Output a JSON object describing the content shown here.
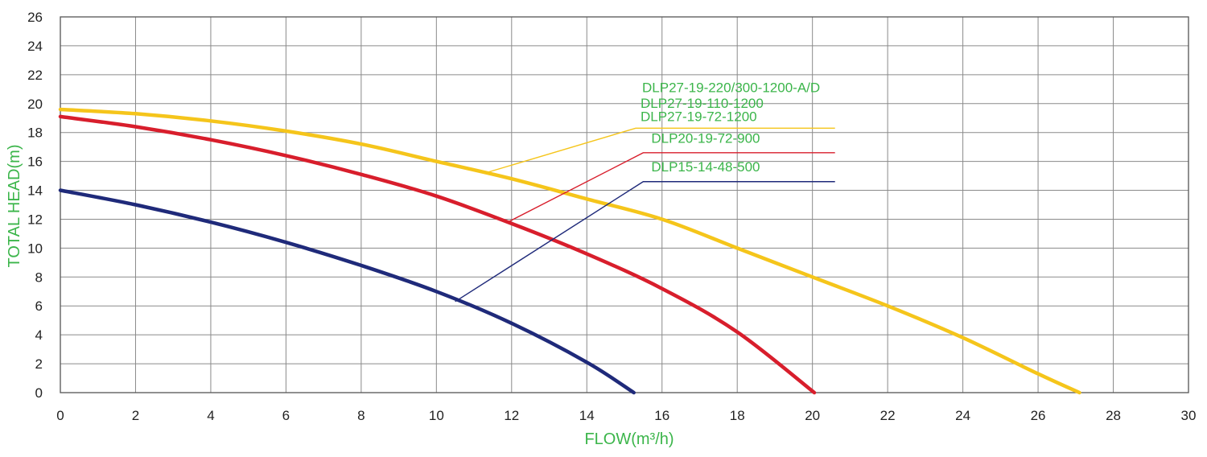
{
  "chart_data": {
    "type": "line",
    "xlabel": "FLOW(m³/h)",
    "ylabel": "TOTAL HEAD(m)",
    "xlim": [
      0,
      30
    ],
    "ylim": [
      0,
      26
    ],
    "xticks": [
      "0",
      "2",
      "4",
      "6",
      "8",
      "10",
      "12",
      "14",
      "16",
      "18",
      "20",
      "22",
      "24",
      "26",
      "28",
      "30"
    ],
    "yticks": [
      "0",
      "2",
      "4",
      "6",
      "8",
      "10",
      "12",
      "14",
      "16",
      "18",
      "20",
      "22",
      "24",
      "26"
    ],
    "grid": true,
    "label_color": "#3bb54a",
    "series": [
      {
        "name": "DLP27-19-220/300-1200-A/D",
        "color": "#f5c51b",
        "x": [
          0,
          2,
          4,
          6,
          8,
          10,
          12,
          14,
          16,
          18,
          20,
          22,
          24,
          26,
          27.1
        ],
        "y": [
          19.6,
          19.3,
          18.8,
          18.1,
          17.2,
          16.0,
          14.8,
          13.4,
          12.0,
          10.0,
          8.0,
          6.0,
          3.8,
          1.3,
          0
        ]
      },
      {
        "name": "DLP20-19-72-900",
        "color": "#d81e2c",
        "x": [
          0,
          2,
          4,
          6,
          8,
          10,
          12,
          14,
          16,
          18,
          20.05
        ],
        "y": [
          19.1,
          18.4,
          17.5,
          16.4,
          15.1,
          13.6,
          11.7,
          9.6,
          7.2,
          4.2,
          0
        ]
      },
      {
        "name": "DLP15-14-48-500",
        "color": "#1f2a7a",
        "x": [
          0,
          2,
          4,
          6,
          8,
          10,
          12,
          14,
          15.25
        ],
        "y": [
          14.0,
          13.0,
          11.8,
          10.4,
          8.8,
          7.0,
          4.8,
          2.1,
          0
        ]
      }
    ],
    "legend": [
      {
        "labels": [
          "DLP27-19-220/300-1200-A/D",
          "DLP27-19-110-1200",
          "DLP27-19-72-1200"
        ],
        "color": "#f5c51b",
        "anchor": [
          11.3,
          15.2
        ],
        "elbow": [
          15.3,
          18.3
        ],
        "end_x": 20.6,
        "text_y": [
          20.8,
          19.7,
          18.8
        ]
      },
      {
        "labels": [
          "DLP20-19-72-900"
        ],
        "color": "#d81e2c",
        "anchor": [
          11.9,
          11.8
        ],
        "elbow": [
          15.5,
          16.6
        ],
        "end_x": 20.6,
        "text_y": [
          17.3
        ]
      },
      {
        "labels": [
          "DLP15-14-48-500"
        ],
        "color": "#1f2a7a",
        "anchor": [
          10.5,
          6.3
        ],
        "elbow": [
          15.5,
          14.6
        ],
        "end_x": 20.6,
        "text_y": [
          15.3
        ]
      }
    ]
  }
}
